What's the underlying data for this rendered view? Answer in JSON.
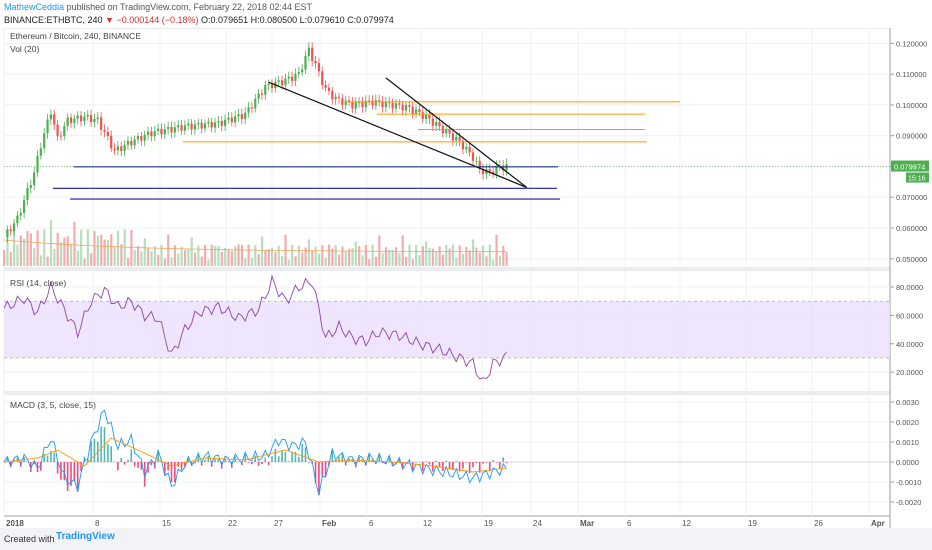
{
  "header": {
    "author": "MathewCeddia",
    "published": "published on TradingView.com, February 22, 2018 02:44 EST",
    "symbol": "BINANCE:ETHBTC, 240",
    "change": "▼ −0.000144 (−0.18%)",
    "ohlc": "O:0.079651 H:0.080500 L:0.079610 C:0.079974"
  },
  "panes": {
    "main_label": "Ethereum / Bitcoin, 240, BINANCE",
    "vol_label": "Vol (20)",
    "rsi_label": "RSI (14, close)",
    "macd_label": "MACD (3, 5, close, 15)"
  },
  "price_tag": {
    "value": "0.079974",
    "time": "15:16"
  },
  "footer": {
    "created": "Created with",
    "brand": "TradingView"
  },
  "colors": {
    "up": "#4caf50",
    "down": "#ef5350",
    "level_blue": "#1a1aa6",
    "level_orange": "#ff9800",
    "rsi_line": "#8e44ad",
    "rsi_band": "#eadcfc",
    "macd": "#2196f3",
    "signal": "#ff9800"
  },
  "chart_data": {
    "type": "line",
    "x_ticks": [
      "2018",
      "8",
      "15",
      "22",
      "27",
      "Feb",
      "6",
      "12",
      "19",
      "24",
      "Mar",
      "6",
      "12",
      "19",
      "26",
      "Apr"
    ],
    "price": {
      "y_ticks": [
        "0.120000",
        "0.110000",
        "0.100000",
        "0.090000",
        "0.080000",
        "0.070000",
        "0.060000",
        "0.050000"
      ],
      "ylim": [
        0.047,
        0.125
      ],
      "series_points": [
        [
          0,
          0.057
        ],
        [
          4,
          0.063
        ],
        [
          6,
          0.069
        ],
        [
          9,
          0.078
        ],
        [
          11,
          0.087
        ],
        [
          14,
          0.098
        ],
        [
          16,
          0.089
        ],
        [
          19,
          0.095
        ],
        [
          24,
          0.096
        ],
        [
          28,
          0.095
        ],
        [
          33,
          0.085
        ],
        [
          38,
          0.088
        ],
        [
          44,
          0.091
        ],
        [
          54,
          0.093
        ],
        [
          64,
          0.094
        ],
        [
          72,
          0.097
        ],
        [
          78,
          0.106
        ],
        [
          84,
          0.108
        ],
        [
          88,
          0.11
        ],
        [
          91,
          0.118
        ],
        [
          93,
          0.113
        ],
        [
          96,
          0.105
        ],
        [
          99,
          0.102
        ],
        [
          104,
          0.1
        ],
        [
          110,
          0.101
        ],
        [
          116,
          0.1
        ],
        [
          121,
          0.099
        ],
        [
          126,
          0.096
        ],
        [
          131,
          0.092
        ],
        [
          136,
          0.088
        ],
        [
          140,
          0.083
        ],
        [
          142,
          0.079
        ],
        [
          145,
          0.078
        ],
        [
          148,
          0.08
        ],
        [
          150,
          0.0799
        ]
      ],
      "levels_blue": [
        0.0799,
        0.0729,
        0.0694
      ],
      "levels_orange": [
        0.101,
        0.097,
        0.092,
        0.088
      ],
      "trendlines": [
        [
          [
            79,
            0.1074
          ],
          [
            156,
            0.0732
          ]
        ],
        [
          [
            114,
            0.1088
          ],
          [
            156,
            0.0732
          ]
        ]
      ]
    },
    "rsi": {
      "y_ticks": [
        "80.0000",
        "60.0000",
        "40.0000",
        "20.0000"
      ],
      "ylim": [
        6,
        92
      ],
      "band": [
        30,
        70
      ],
      "series_points": [
        [
          0,
          65
        ],
        [
          6,
          72
        ],
        [
          10,
          62
        ],
        [
          14,
          80
        ],
        [
          18,
          64
        ],
        [
          22,
          48
        ],
        [
          26,
          70
        ],
        [
          30,
          78
        ],
        [
          34,
          66
        ],
        [
          38,
          70
        ],
        [
          42,
          60
        ],
        [
          46,
          58
        ],
        [
          50,
          32
        ],
        [
          54,
          50
        ],
        [
          58,
          62
        ],
        [
          64,
          66
        ],
        [
          70,
          58
        ],
        [
          76,
          64
        ],
        [
          80,
          84
        ],
        [
          84,
          70
        ],
        [
          88,
          80
        ],
        [
          92,
          84
        ],
        [
          96,
          44
        ],
        [
          100,
          52
        ],
        [
          104,
          44
        ],
        [
          108,
          42
        ],
        [
          112,
          48
        ],
        [
          118,
          46
        ],
        [
          124,
          40
        ],
        [
          130,
          36
        ],
        [
          136,
          30
        ],
        [
          140,
          26
        ],
        [
          143,
          12
        ],
        [
          146,
          26
        ],
        [
          150,
          31
        ]
      ]
    },
    "macd": {
      "y_ticks": [
        "0.0030",
        "0.0020",
        "0.0010",
        "0.0000",
        "-0.0010",
        "-0.0020"
      ],
      "ylim": [
        -0.0027,
        0.0034
      ],
      "macd_points": [
        [
          0,
          0
        ],
        [
          6,
          0.0002
        ],
        [
          10,
          -0.0003
        ],
        [
          14,
          0.0012
        ],
        [
          18,
          -0.0008
        ],
        [
          22,
          -0.0012
        ],
        [
          26,
          0.001
        ],
        [
          30,
          0.0026
        ],
        [
          34,
          0.0008
        ],
        [
          38,
          0.0011
        ],
        [
          42,
          -0.0005
        ],
        [
          46,
          0.0004
        ],
        [
          50,
          -0.0012
        ],
        [
          54,
          -0.0001
        ],
        [
          60,
          0.0003
        ],
        [
          66,
          0.0001
        ],
        [
          72,
          0.0002
        ],
        [
          78,
          0.0003
        ],
        [
          82,
          0.0011
        ],
        [
          86,
          0.0008
        ],
        [
          90,
          0.001
        ],
        [
          94,
          -0.0015
        ],
        [
          98,
          0.0004
        ],
        [
          104,
          0.0001
        ],
        [
          110,
          0.0002
        ],
        [
          116,
          0
        ],
        [
          122,
          -0.0002
        ],
        [
          128,
          -0.0004
        ],
        [
          134,
          -0.0006
        ],
        [
          140,
          -0.0008
        ],
        [
          144,
          -0.0006
        ],
        [
          150,
          -0.0003
        ]
      ],
      "signal_points": [
        [
          0,
          0
        ],
        [
          10,
          0.0002
        ],
        [
          16,
          0.0006
        ],
        [
          24,
          -0.0002
        ],
        [
          32,
          0.0012
        ],
        [
          40,
          0.0006
        ],
        [
          50,
          -0.0002
        ],
        [
          60,
          0.0002
        ],
        [
          72,
          0.0001
        ],
        [
          84,
          0.0006
        ],
        [
          94,
          0
        ],
        [
          104,
          0.0001
        ],
        [
          116,
          0
        ],
        [
          128,
          -0.0002
        ],
        [
          140,
          -0.0005
        ],
        [
          150,
          -0.0003
        ]
      ]
    }
  }
}
